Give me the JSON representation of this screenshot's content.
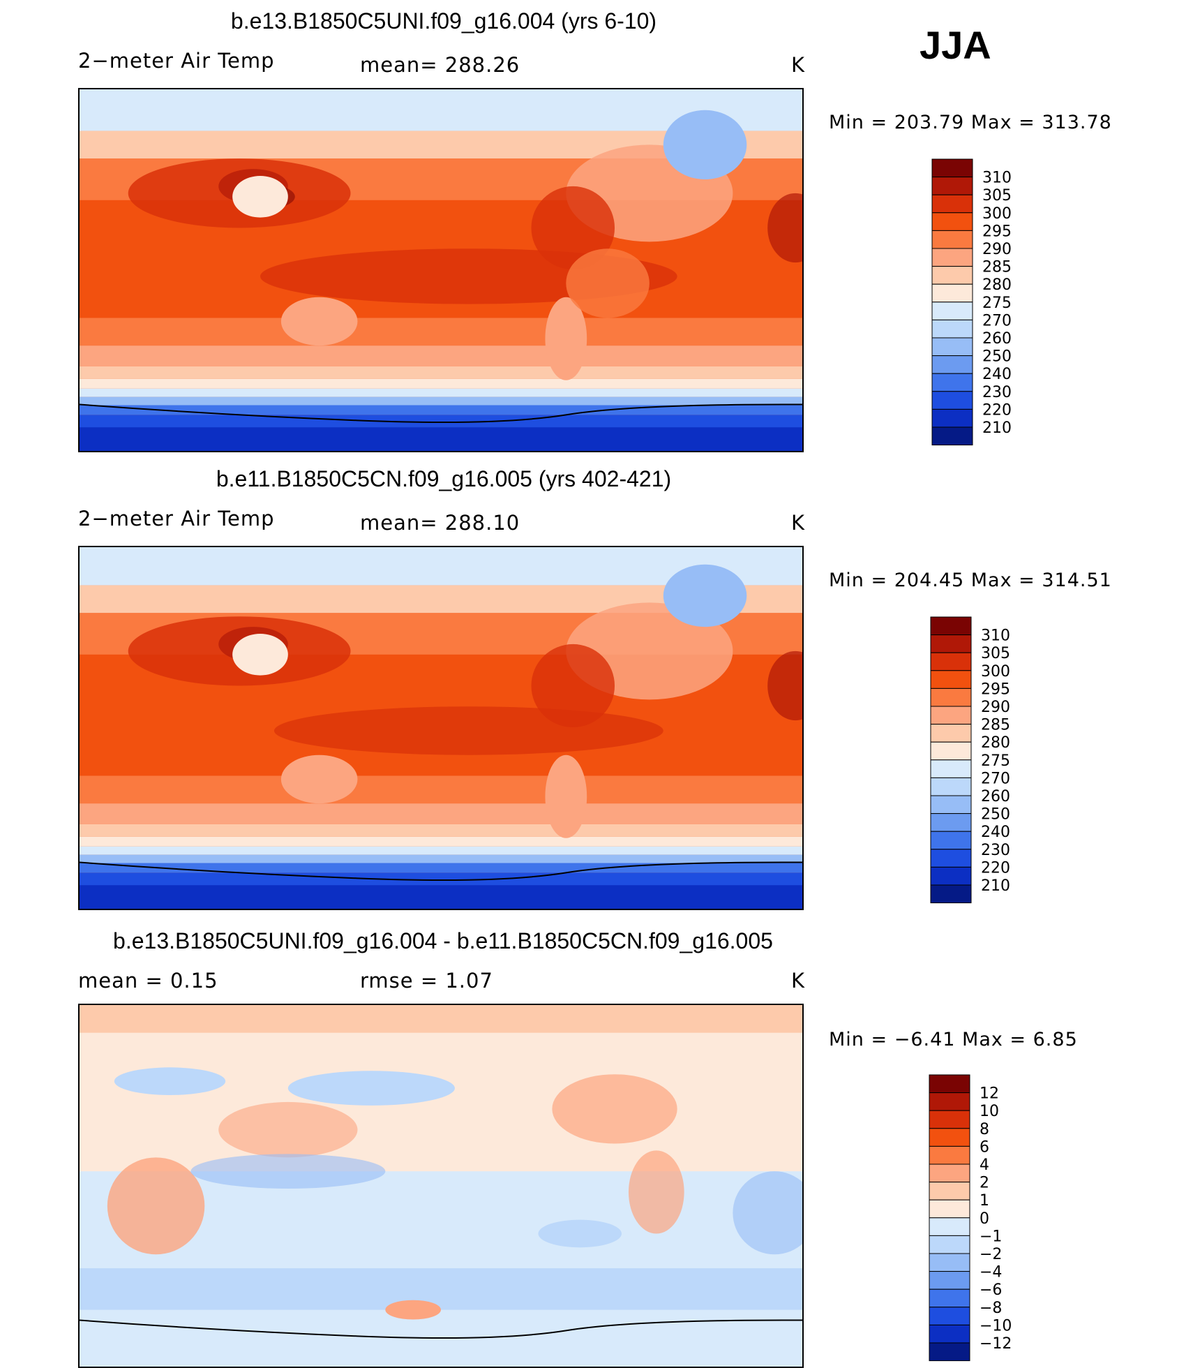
{
  "season": "JJA",
  "colors": {
    "temp": [
      "#7a0403",
      "#b01807",
      "#d93109",
      "#f2510f",
      "#fa7a40",
      "#fca580",
      "#fdcaab",
      "#fde9da",
      "#d8eafb",
      "#bcd8fa",
      "#97bdf6",
      "#6c9bf0",
      "#3f74eb",
      "#1e4ee0",
      "#0c2fc3",
      "#051a86"
    ],
    "diff": [
      "#7a0403",
      "#b01807",
      "#d93109",
      "#f2510f",
      "#fa7a40",
      "#fca580",
      "#fdcaab",
      "#fde9da",
      "#d8eafb",
      "#bcd8fa",
      "#97bdf6",
      "#6c9bf0",
      "#3f74eb",
      "#1e4ee0",
      "#0c2fc3",
      "#051a86"
    ]
  },
  "panels": [
    {
      "title": "b.e13.B1850C5UNI.f09_g16.004 (yrs 6-10)",
      "left_label": "2−meter Air Temp",
      "mid_label": "mean=  288.26",
      "units": "K",
      "minmax": "Min  =  203.79  Max  =  313.78"
    },
    {
      "title": "b.e11.B1850C5CN.f09_g16.005 (yrs 402-421)",
      "left_label": "2−meter Air Temp",
      "mid_label": "mean=  288.10",
      "units": "K",
      "minmax": "Min  =  204.45  Max  =  314.51"
    },
    {
      "title": "b.e13.B1850C5UNI.f09_g16.004 - b.e11.B1850C5CN.f09_g16.005",
      "left_label": "mean  =     0.15",
      "mid_label": "rmse  =     1.07",
      "units": "K",
      "minmax": "Min  =    −6.41  Max  =      6.85"
    }
  ],
  "chart_data": [
    {
      "type": "heatmap",
      "title": "b.e13.B1850C5UNI.f09_g16.004 (yrs 6-10)",
      "variable": "2-meter Air Temp",
      "units": "K",
      "mean": 288.26,
      "min": 203.79,
      "max": 313.78,
      "colorbar_levels": [
        "310",
        "305",
        "300",
        "295",
        "290",
        "285",
        "280",
        "275",
        "270",
        "260",
        "250",
        "240",
        "230",
        "220",
        "210"
      ]
    },
    {
      "type": "heatmap",
      "title": "b.e11.B1850C5CN.f09_g16.005 (yrs 402-421)",
      "variable": "2-meter Air Temp",
      "units": "K",
      "mean": 288.1,
      "min": 204.45,
      "max": 314.51,
      "colorbar_levels": [
        "310",
        "305",
        "300",
        "295",
        "290",
        "285",
        "280",
        "275",
        "270",
        "260",
        "250",
        "240",
        "230",
        "220",
        "210"
      ]
    },
    {
      "type": "heatmap",
      "title": "b.e13.B1850C5UNI.f09_g16.004 - b.e11.B1850C5CN.f09_g16.005",
      "variable": "2-meter Air Temp difference",
      "units": "K",
      "mean": 0.15,
      "rmse": 1.07,
      "min": -6.41,
      "max": 6.85,
      "colorbar_levels": [
        "12",
        "10",
        "8",
        "6",
        "4",
        "2",
        "1",
        "0",
        "−1",
        "−2",
        "−4",
        "−6",
        "−8",
        "−10",
        "−12"
      ]
    }
  ]
}
